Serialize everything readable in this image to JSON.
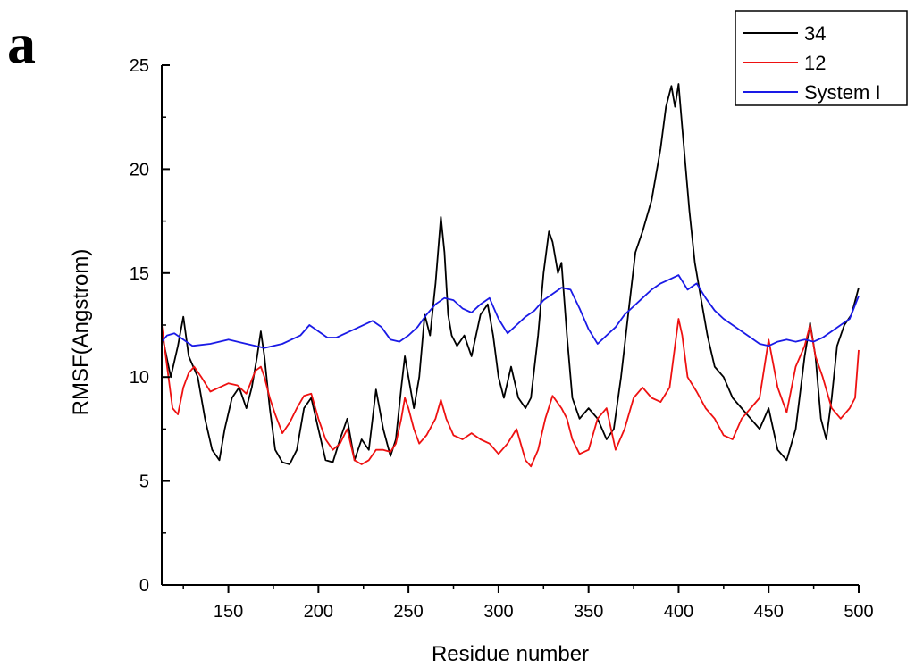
{
  "panel_label": "a",
  "chart_data": {
    "type": "line",
    "title": "",
    "xlabel": "Residue number",
    "ylabel": "RMSF(Angstrom)",
    "xlim": [
      113,
      500
    ],
    "ylim": [
      0,
      25
    ],
    "xticks": [
      150,
      200,
      250,
      300,
      350,
      400,
      450,
      500
    ],
    "xtick_labels": [
      "150",
      "200",
      "250",
      "300",
      "350",
      "400",
      "450",
      "500"
    ],
    "yticks": [
      0,
      5,
      10,
      15,
      20,
      25
    ],
    "ytick_labels": [
      "0",
      "5",
      "10",
      "15",
      "20",
      "25"
    ],
    "grid": false,
    "legend_position": "top-right",
    "series": [
      {
        "name": "34",
        "color": "#000000",
        "x": [
          113,
          118,
          122,
          125,
          128,
          133,
          137,
          141,
          145,
          148,
          152,
          156,
          160,
          163,
          166,
          168,
          170,
          173,
          176,
          180,
          184,
          188,
          192,
          196,
          200,
          204,
          208,
          212,
          216,
          220,
          224,
          228,
          232,
          236,
          240,
          243,
          246,
          248,
          250,
          253,
          256,
          259,
          262,
          265,
          268,
          270,
          272,
          274,
          277,
          281,
          285,
          290,
          294,
          297,
          300,
          303,
          307,
          311,
          315,
          318,
          322,
          325,
          328,
          330,
          333,
          335,
          338,
          341,
          345,
          350,
          355,
          360,
          364,
          368,
          372,
          376,
          380,
          385,
          390,
          393,
          396,
          398,
          400,
          402,
          404,
          406,
          409,
          412,
          416,
          420,
          425,
          430,
          435,
          440,
          445,
          450,
          455,
          460,
          465,
          470,
          473,
          476,
          479,
          482,
          485,
          488,
          492,
          496,
          500
        ],
        "y": [
          12.1,
          10.0,
          11.5,
          12.9,
          11.0,
          10.0,
          8.0,
          6.5,
          6.0,
          7.5,
          9.0,
          9.5,
          8.5,
          9.5,
          11.0,
          12.2,
          11.0,
          8.5,
          6.5,
          5.9,
          5.8,
          6.5,
          8.5,
          9.0,
          7.5,
          6.0,
          5.9,
          7.0,
          8.0,
          6.0,
          7.0,
          6.5,
          9.4,
          7.5,
          6.2,
          7.0,
          9.5,
          11.0,
          10.0,
          8.5,
          10.0,
          13.0,
          12.0,
          14.5,
          17.7,
          16.0,
          13.0,
          12.0,
          11.5,
          12.0,
          11.0,
          13.0,
          13.5,
          12.0,
          10.0,
          9.0,
          10.5,
          9.0,
          8.5,
          9.0,
          12.0,
          15.0,
          17.0,
          16.5,
          15.0,
          15.5,
          12.0,
          9.0,
          8.0,
          8.5,
          8.0,
          7.0,
          7.5,
          10.0,
          13.0,
          16.0,
          17.0,
          18.5,
          21.0,
          23.0,
          24.0,
          23.0,
          24.1,
          22.0,
          20.0,
          18.0,
          15.5,
          14.0,
          12.0,
          10.5,
          10.0,
          9.0,
          8.5,
          8.0,
          7.5,
          8.5,
          6.5,
          6.0,
          7.5,
          11.0,
          12.6,
          11.0,
          8.0,
          7.0,
          9.0,
          11.5,
          12.5,
          13.0,
          14.3
        ]
      },
      {
        "name": "12",
        "color": "#ee1111",
        "x": [
          113,
          116,
          119,
          122,
          125,
          128,
          131,
          135,
          140,
          145,
          150,
          155,
          160,
          165,
          168,
          170,
          173,
          176,
          180,
          184,
          188,
          192,
          196,
          200,
          204,
          208,
          212,
          216,
          220,
          224,
          228,
          232,
          236,
          240,
          243,
          246,
          248,
          250,
          253,
          256,
          260,
          265,
          268,
          271,
          275,
          280,
          285,
          290,
          295,
          300,
          305,
          310,
          315,
          318,
          322,
          326,
          330,
          335,
          338,
          341,
          345,
          350,
          355,
          360,
          365,
          370,
          375,
          380,
          385,
          390,
          395,
          398,
          400,
          402,
          405,
          410,
          415,
          420,
          425,
          430,
          435,
          440,
          445,
          450,
          455,
          460,
          465,
          470,
          473,
          476,
          480,
          485,
          490,
          495,
          498,
          500
        ],
        "y": [
          12.5,
          10.5,
          8.5,
          8.2,
          9.5,
          10.2,
          10.5,
          10.0,
          9.3,
          9.5,
          9.7,
          9.6,
          9.2,
          10.3,
          10.5,
          10.0,
          9.0,
          8.2,
          7.3,
          7.8,
          8.5,
          9.1,
          9.2,
          8.0,
          7.0,
          6.5,
          6.8,
          7.5,
          6.0,
          5.8,
          6.0,
          6.5,
          6.5,
          6.4,
          6.8,
          8.0,
          9.0,
          8.5,
          7.5,
          6.8,
          7.2,
          8.0,
          8.9,
          8.0,
          7.2,
          7.0,
          7.3,
          7.0,
          6.8,
          6.3,
          6.8,
          7.5,
          6.0,
          5.7,
          6.5,
          8.0,
          9.1,
          8.5,
          8.0,
          7.0,
          6.3,
          6.5,
          8.0,
          8.5,
          6.5,
          7.5,
          9.0,
          9.5,
          9.0,
          8.8,
          9.5,
          11.5,
          12.8,
          12.0,
          10.0,
          9.3,
          8.5,
          8.0,
          7.2,
          7.0,
          8.0,
          8.5,
          9.0,
          11.8,
          9.5,
          8.3,
          10.5,
          11.5,
          12.5,
          11.0,
          10.0,
          8.5,
          8.0,
          8.5,
          9.0,
          11.3
        ]
      },
      {
        "name": "System I",
        "color": "#1a1ae6",
        "x": [
          113,
          116,
          120,
          125,
          130,
          140,
          150,
          160,
          170,
          180,
          190,
          195,
          200,
          205,
          210,
          220,
          230,
          235,
          240,
          245,
          250,
          255,
          260,
          265,
          270,
          275,
          280,
          285,
          290,
          295,
          300,
          305,
          310,
          315,
          320,
          325,
          330,
          335,
          340,
          345,
          350,
          355,
          360,
          365,
          370,
          375,
          380,
          385,
          390,
          395,
          400,
          405,
          410,
          415,
          420,
          425,
          430,
          435,
          440,
          445,
          450,
          455,
          460,
          465,
          470,
          475,
          480,
          485,
          490,
          495,
          500
        ],
        "y": [
          11.7,
          12.0,
          12.1,
          11.8,
          11.5,
          11.6,
          11.8,
          11.6,
          11.4,
          11.6,
          12.0,
          12.5,
          12.2,
          11.9,
          11.9,
          12.3,
          12.7,
          12.4,
          11.8,
          11.7,
          12.0,
          12.4,
          13.0,
          13.5,
          13.8,
          13.7,
          13.3,
          13.1,
          13.5,
          13.8,
          12.8,
          12.1,
          12.5,
          12.9,
          13.2,
          13.7,
          14.0,
          14.3,
          14.2,
          13.3,
          12.3,
          11.6,
          12.0,
          12.4,
          13.0,
          13.4,
          13.8,
          14.2,
          14.5,
          14.7,
          14.9,
          14.2,
          14.5,
          13.8,
          13.2,
          12.8,
          12.5,
          12.2,
          11.9,
          11.6,
          11.5,
          11.7,
          11.8,
          11.7,
          11.8,
          11.7,
          11.9,
          12.2,
          12.5,
          12.8,
          13.9
        ]
      }
    ]
  }
}
